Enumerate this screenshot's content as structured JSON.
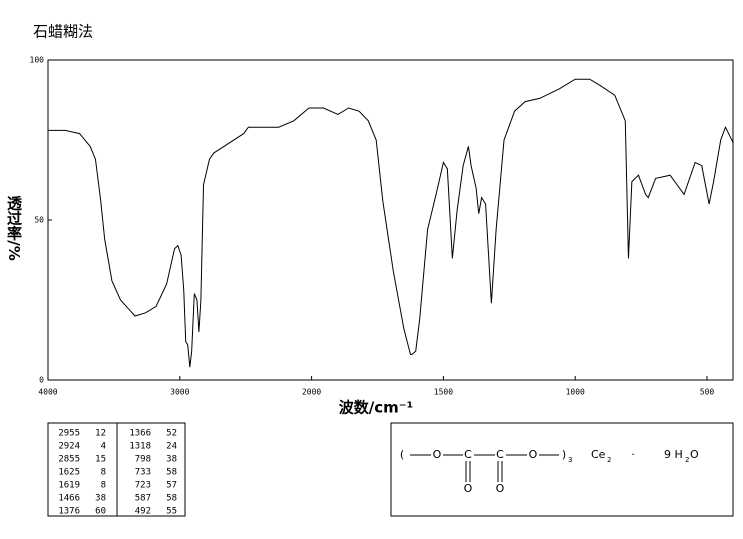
{
  "chart_data": {
    "type": "line",
    "title": "石蜡糊法",
    "x_label": "波数/cm⁻¹",
    "y_label": "透过率/%",
    "color": "#000000",
    "xlim": [
      4000,
      400
    ],
    "xticks": [
      4000,
      3000,
      2000,
      1500,
      1000,
      500
    ],
    "ylim": [
      0,
      100
    ],
    "yticks": [
      0,
      50,
      100
    ],
    "x": [
      4000,
      3870,
      3760,
      3680,
      3640,
      3600,
      3570,
      3515,
      3450,
      3340,
      3260,
      3180,
      3100,
      3040,
      3015,
      2990,
      2970,
      2955,
      2940,
      2924,
      2910,
      2890,
      2870,
      2855,
      2840,
      2820,
      2775,
      2740,
      2665,
      2515,
      2480,
      2365,
      2250,
      2135,
      2020,
      1955,
      1900,
      1860,
      1820,
      1785,
      1755,
      1730,
      1690,
      1650,
      1625,
      1619,
      1605,
      1590,
      1560,
      1525,
      1500,
      1485,
      1466,
      1448,
      1425,
      1405,
      1395,
      1376,
      1366,
      1355,
      1340,
      1318,
      1300,
      1270,
      1230,
      1190,
      1135,
      1060,
      1000,
      945,
      905,
      850,
      810,
      798,
      785,
      760,
      733,
      723,
      695,
      640,
      587,
      545,
      520,
      492,
      475,
      448,
      430,
      400
    ],
    "values": [
      78,
      78,
      77,
      73,
      69,
      56,
      44,
      31,
      25,
      20,
      21,
      23,
      30,
      41,
      42,
      39,
      28,
      12,
      11,
      4,
      9,
      27,
      25,
      15,
      25,
      61,
      69,
      71,
      73,
      77,
      79,
      79,
      79,
      81,
      85,
      85,
      83,
      85,
      84,
      81,
      75,
      56,
      34,
      16,
      8,
      8,
      9,
      19,
      47,
      59,
      68,
      66,
      38,
      53,
      67,
      73,
      67,
      60,
      52,
      57,
      55,
      24,
      47,
      75,
      84,
      87,
      88,
      91,
      94,
      94,
      92,
      89,
      81,
      38,
      62,
      64,
      58,
      57,
      63,
      64,
      58,
      68,
      67,
      55,
      62,
      75,
      79,
      74
    ]
  },
  "peak_table": {
    "rows": [
      [
        2955,
        12
      ],
      [
        2924,
        4
      ],
      [
        2855,
        15
      ],
      [
        1625,
        8
      ],
      [
        1619,
        8
      ],
      [
        1466,
        38
      ],
      [
        1376,
        60
      ],
      [
        1366,
        52
      ],
      [
        1318,
        24
      ],
      [
        798,
        38
      ],
      [
        733,
        58
      ],
      [
        723,
        57
      ],
      [
        587,
        58
      ],
      [
        492,
        55
      ]
    ]
  },
  "structure": {
    "open": "(",
    "atoms": [
      "O",
      "C",
      "C",
      "O"
    ],
    "close": ")",
    "n": "3",
    "carbonyl_o": [
      "O",
      "O"
    ],
    "salt": "Ce",
    "salt_n": "2",
    "dot": "·",
    "water": "9 H",
    "water_n": "2",
    "water_o": "O"
  }
}
